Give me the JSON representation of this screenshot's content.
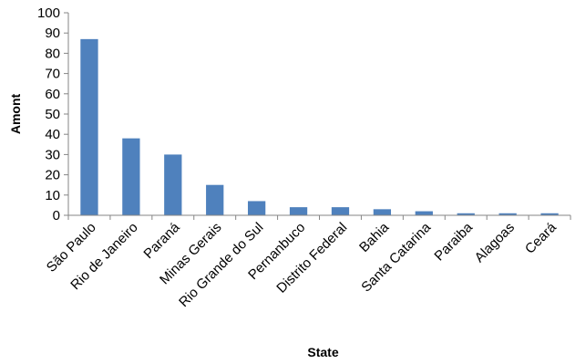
{
  "chart_data": {
    "type": "bar",
    "title": "",
    "xlabel": "State",
    "ylabel": "Amont",
    "ylim": [
      0,
      100
    ],
    "y_ticks": [
      0,
      10,
      20,
      30,
      40,
      50,
      60,
      70,
      80,
      90,
      100
    ],
    "grid": false,
    "legend": "none",
    "bar_color": "#4F81BD",
    "categories": [
      "São Paulo",
      "Rio de Janeiro",
      "Paraná",
      "Minas Gerais",
      "Rio Grande do Sul",
      "Pernanbuco",
      "Distrito Federal",
      "Bahia",
      "Santa Catarina",
      "Paraiba",
      "Alagoas",
      "Ceará"
    ],
    "values": [
      87,
      38,
      30,
      15,
      7,
      4,
      4,
      3,
      2,
      1,
      1,
      1
    ]
  }
}
